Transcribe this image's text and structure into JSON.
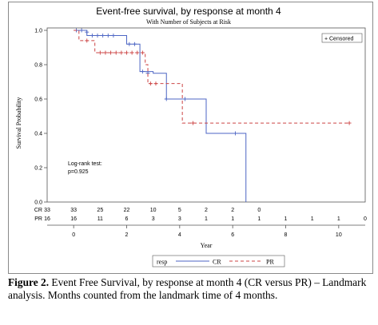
{
  "chart_data": {
    "type": "line",
    "title": "Event-free survival, by response at month 4",
    "subtitle": "With Number of Subjects at Risk",
    "xlabel": "Year",
    "ylabel": "Survival Probability",
    "xlim": [
      -1,
      11
    ],
    "ylim": [
      0,
      1
    ],
    "xticks": [
      0,
      2,
      4,
      6,
      8,
      10
    ],
    "yticks": [
      0.0,
      0.2,
      0.4,
      0.6,
      0.8,
      1.0
    ],
    "ytick_labels": [
      "0.0",
      "0.2",
      "0.4",
      "0.6",
      "0.8",
      "1.0"
    ],
    "censored_legend": "Censored",
    "annotation": [
      "Log-rank test:",
      "p=0.925"
    ],
    "legend_title": "resp",
    "series": [
      {
        "name": "CR",
        "color": "#4d66c4",
        "dash": "solid",
        "steps": [
          [
            0,
            1.0
          ],
          [
            0.5,
            0.97
          ],
          [
            2.0,
            0.92
          ],
          [
            2.5,
            0.76
          ],
          [
            3.0,
            0.75
          ],
          [
            3.5,
            0.6
          ],
          [
            5.0,
            0.4
          ],
          [
            6.5,
            0.0
          ]
        ],
        "censored": [
          [
            0.1,
            1.0
          ],
          [
            0.3,
            1.0
          ],
          [
            0.5,
            0.99
          ],
          [
            0.7,
            0.97
          ],
          [
            0.9,
            0.97
          ],
          [
            1.1,
            0.97
          ],
          [
            1.3,
            0.97
          ],
          [
            1.5,
            0.97
          ],
          [
            2.1,
            0.92
          ],
          [
            2.3,
            0.92
          ],
          [
            2.6,
            0.76
          ],
          [
            2.8,
            0.75
          ],
          [
            3.5,
            0.6
          ],
          [
            4.2,
            0.6
          ],
          [
            6.1,
            0.4
          ]
        ]
      },
      {
        "name": "PR",
        "color": "#cc4444",
        "dash": "dashed",
        "steps": [
          [
            0,
            1.0
          ],
          [
            0.2,
            0.94
          ],
          [
            0.8,
            0.87
          ],
          [
            2.7,
            0.8
          ],
          [
            2.8,
            0.69
          ],
          [
            3.3,
            0.69
          ],
          [
            4.0,
            0.69
          ],
          [
            4.1,
            0.46
          ],
          [
            10.4,
            0.46
          ]
        ],
        "censored": [
          [
            0.5,
            0.94
          ],
          [
            1.0,
            0.87
          ],
          [
            1.2,
            0.87
          ],
          [
            1.4,
            0.87
          ],
          [
            1.6,
            0.87
          ],
          [
            1.8,
            0.87
          ],
          [
            2.0,
            0.87
          ],
          [
            2.2,
            0.87
          ],
          [
            2.4,
            0.87
          ],
          [
            2.6,
            0.87
          ],
          [
            2.9,
            0.69
          ],
          [
            3.1,
            0.69
          ],
          [
            4.5,
            0.46
          ],
          [
            10.4,
            0.46
          ]
        ]
      }
    ],
    "at_risk": {
      "times": [
        -1,
        0,
        1,
        2,
        3,
        4,
        5,
        6,
        7,
        8,
        9,
        10,
        11
      ],
      "rows": [
        {
          "label": "CR",
          "values": [
            "33",
            "33",
            "25",
            "22",
            "10",
            "5",
            "2",
            "2",
            "0",
            "",
            "",
            "",
            ""
          ]
        },
        {
          "label": "PR",
          "values": [
            "16",
            "16",
            "11",
            "6",
            "3",
            "3",
            "1",
            "1",
            "1",
            "1",
            "1",
            "1",
            "0"
          ]
        }
      ]
    }
  },
  "caption": {
    "bold": "Figure 2.",
    "text": " Event Free Survival, by response at month 4 (CR versus PR) – Landmark analysis. Months counted from the landmark time of 4 months."
  }
}
